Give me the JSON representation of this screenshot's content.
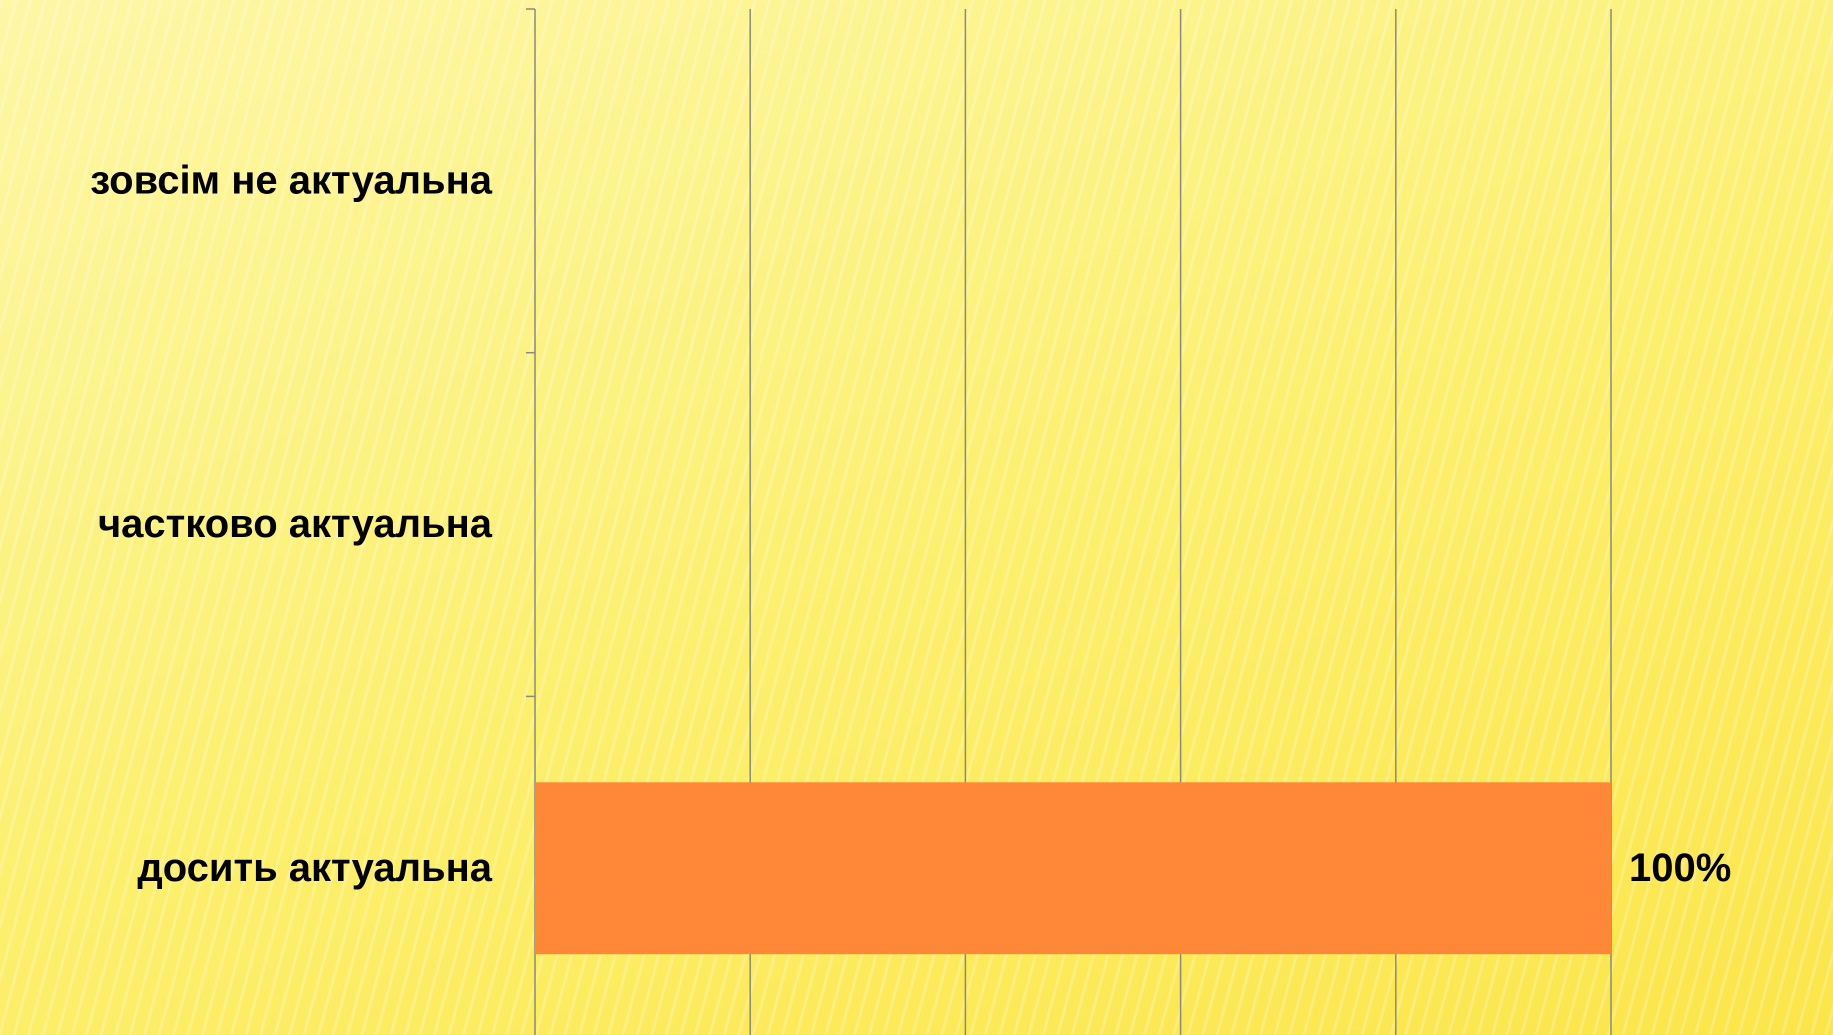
{
  "chart_data": {
    "type": "hbar",
    "categories": [
      "зовсім не актуальна",
      "частково актуальна",
      "досить актуальна"
    ],
    "values": [
      0,
      0,
      100
    ],
    "value_labels": [
      null,
      null,
      "100%"
    ],
    "color": "#fe8738",
    "xlim": [
      0,
      100
    ],
    "xticks": [
      0,
      20,
      40,
      60,
      80,
      100
    ],
    "grid": true
  }
}
